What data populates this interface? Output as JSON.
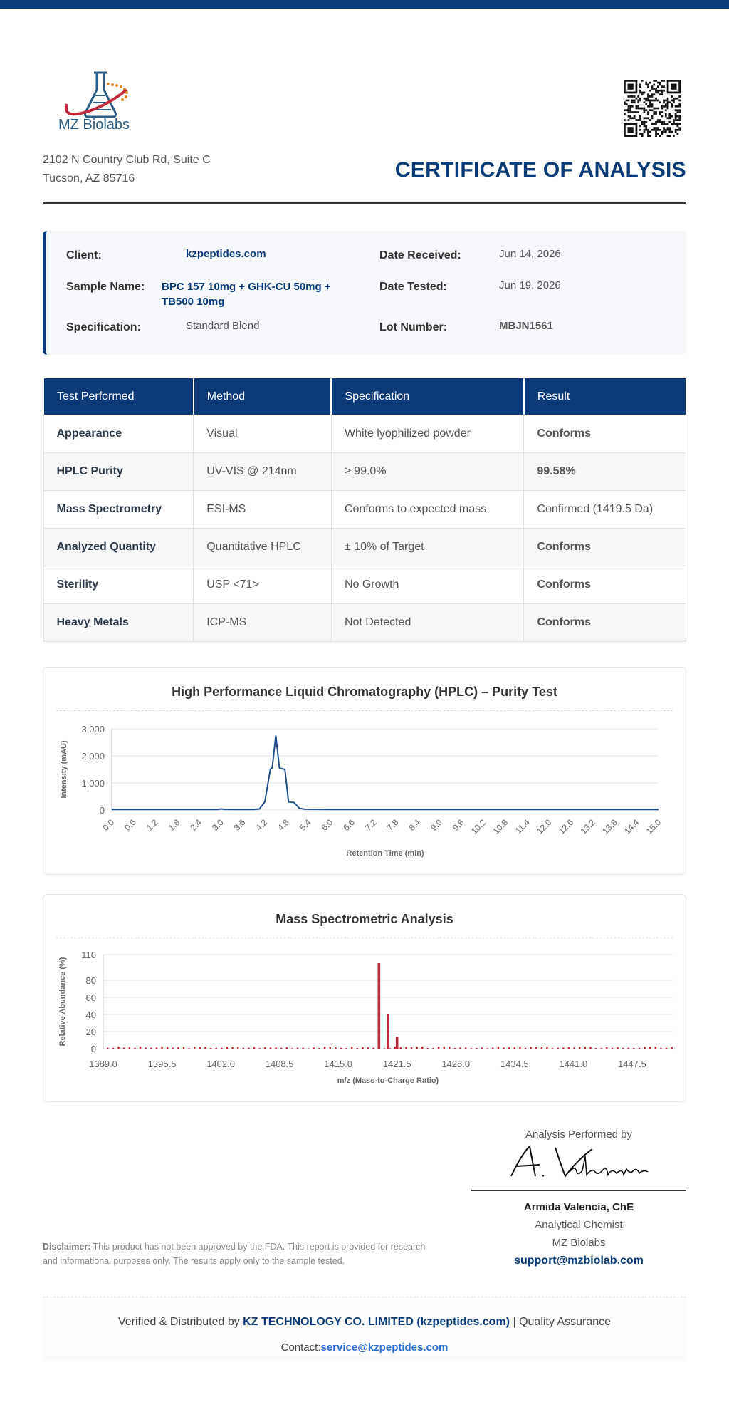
{
  "header": {
    "company": "MZ Biolabs",
    "address_line1": "2102 N Country Club Rd, Suite C",
    "address_line2": "Tucson, AZ 85716",
    "title": "CERTIFICATE OF ANALYSIS"
  },
  "info": {
    "client_label": "Client:",
    "client": "kzpeptides.com",
    "sample_label": "Sample Name:",
    "sample_line1": "BPC 157 10mg + GHK-CU 50mg +",
    "sample_line2": "TB500 10mg",
    "spec_label": "Specification:",
    "spec": "Standard Blend",
    "received_label": "Date Received:",
    "received": "Jun 14, 2026",
    "tested_label": "Date Tested:",
    "tested": "Jun 19, 2026",
    "lot_label": "Lot Number:",
    "lot": "MBJN1561"
  },
  "table": {
    "headers": [
      "Test Performed",
      "Method",
      "Specification",
      "Result"
    ],
    "rows": [
      [
        "Appearance",
        "Visual",
        "White lyophilized powder",
        "Conforms"
      ],
      [
        "HPLC Purity",
        "UV-VIS @ 214nm",
        "≥ 99.0%",
        "99.58%"
      ],
      [
        "Mass Spectrometry",
        "ESI-MS",
        "Conforms to expected mass",
        "Confirmed (1419.5 Da)"
      ],
      [
        "Analyzed Quantity",
        "Quantitative HPLC",
        "± 10% of Target",
        "Conforms"
      ],
      [
        "Sterility",
        "USP <71>",
        "No Growth",
        "Conforms"
      ],
      [
        "Heavy Metals",
        "ICP-MS",
        "Not Detected",
        "Conforms"
      ]
    ]
  },
  "chart_data": [
    {
      "type": "line",
      "title": "High Performance Liquid Chromatography (HPLC) – Purity Test",
      "xlabel": "Retention Time (min)",
      "ylabel": "Intensity (mAU)",
      "xlim": [
        0,
        15
      ],
      "ylim": [
        0,
        3000
      ],
      "yticks": [
        "0",
        "1,000",
        "2,000",
        "3,000"
      ],
      "xticks": [
        "0.0",
        "0.6",
        "1.2",
        "1.8",
        "2.4",
        "3.0",
        "3.6",
        "4.2",
        "4.8",
        "5.4",
        "6.0",
        "6.6",
        "7.2",
        "7.8",
        "8.4",
        "9.0",
        "9.6",
        "10.2",
        "10.8",
        "11.4",
        "12.0",
        "12.6",
        "13.2",
        "13.8",
        "14.4",
        "15.0"
      ],
      "grid": true,
      "color": "#1f4e8c",
      "series": [
        {
          "x": [
            0,
            2.7,
            2.9,
            3.0,
            3.1,
            3.3,
            3.9,
            4.05,
            4.2,
            4.35,
            4.4,
            4.5,
            4.6,
            4.75,
            4.85,
            5.0,
            5.15,
            5.3,
            6.0,
            15.0
          ],
          "values": [
            20,
            20,
            20,
            40,
            25,
            20,
            20,
            40,
            300,
            1500,
            1550,
            2750,
            1550,
            1500,
            300,
            280,
            60,
            30,
            20,
            20
          ]
        }
      ]
    },
    {
      "type": "bar",
      "title": "Mass Spectrometric Analysis",
      "xlabel": "m/z (Mass-to-Charge Ratio)",
      "ylabel": "Relative Abundance (%)",
      "xlim": [
        1389,
        1452
      ],
      "ylim": [
        0,
        110
      ],
      "yticks": [
        "0",
        "20",
        "40",
        "60",
        "80",
        "110"
      ],
      "xticks": [
        "1389.0",
        "1395.5",
        "1402.0",
        "1408.5",
        "1415.0",
        "1421.5",
        "1428.0",
        "1434.5",
        "1441.0",
        "1447.5"
      ],
      "grid": true,
      "color": "#c0283c",
      "peaks": [
        {
          "mz": 1419.5,
          "value": 100
        },
        {
          "mz": 1420.5,
          "value": 40
        },
        {
          "mz": 1421.5,
          "value": 14
        }
      ],
      "noise_level_percent": [
        0.5,
        2.5
      ]
    }
  ],
  "signature": {
    "heading": "Analysis Performed by",
    "script": "A. Valencia",
    "name": "Armida Valencia, ChE",
    "role": "Analytical Chemist",
    "org": "MZ Biolabs",
    "email": "support@mzbiolab.com"
  },
  "disclaimer": {
    "label": "Disclaimer:",
    "text": "This product has not been approved by the FDA. This report is provided for research and informational purposes only. The results apply only to the sample tested."
  },
  "footer": {
    "prefix": "Verified & Distributed by",
    "company": "KZ TECHNOLOGY CO. LIMITED (kzpeptides.com)",
    "suffix": "| Quality Assurance",
    "contact_label": "Contact:",
    "contact_email": "service@kzpeptides.com"
  },
  "colors": {
    "brand": "#0a3a78",
    "pass": "#27a13a",
    "hplc_line": "#1f4e8c",
    "ms_bar": "#c0283c"
  }
}
